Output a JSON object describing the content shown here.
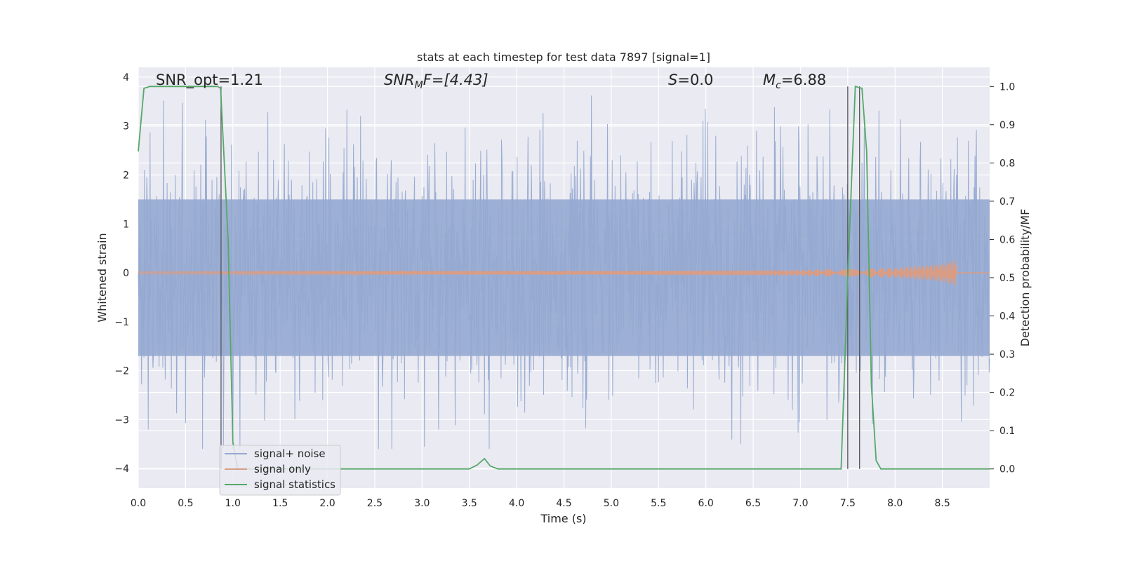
{
  "chart_data": {
    "type": "line",
    "title": "stats at each timestep for test data 7897 [signal=1]",
    "xlabel": "Time (s)",
    "ylabel_left": "Whitened strain",
    "ylabel_right": "Detection probability/MF",
    "xlim": [
      0.0,
      9.0
    ],
    "ylim_left": [
      -4.4,
      4.2
    ],
    "ylim_right": [
      -0.05,
      1.05
    ],
    "x_ticks": [
      "0.0",
      "0.5",
      "1.0",
      "1.5",
      "2.0",
      "2.5",
      "3.0",
      "3.5",
      "4.0",
      "4.5",
      "5.0",
      "5.5",
      "6.0",
      "6.5",
      "7.0",
      "7.5",
      "8.0",
      "8.5"
    ],
    "y_ticks_left": [
      "4",
      "3",
      "2",
      "1",
      "0",
      "−1",
      "−2",
      "−3",
      "−4"
    ],
    "y_ticks_right": [
      "1.0",
      "0.9",
      "0.8",
      "0.7",
      "0.6",
      "0.5",
      "0.4",
      "0.3",
      "0.2",
      "0.1",
      "0.0"
    ],
    "grid": true,
    "legend_position": "lower-left",
    "annotations": {
      "snr_opt": "SNR_opt=1.21",
      "snr_mf_main": "SNR",
      "snr_mf_sub": "M",
      "snr_mf_rest": "F=[4.43]",
      "s_label": "S",
      "s_value": "=0.0",
      "mc_label": "M",
      "mc_sub": "c",
      "mc_value": "=6.88"
    },
    "vertical_markers_x": [
      0.875,
      7.5,
      7.625
    ],
    "series": [
      {
        "name": "signal+ noise",
        "axis": "left",
        "color": "#95a9d0",
        "description_shape": "dense random noise spanning roughly -3.6 to 3.7, core band -1.7 to 1.5"
      },
      {
        "name": "signal only",
        "axis": "left",
        "color": "#d99d85",
        "amplitude_envelope": {
          "x": [
            0.0,
            5.0,
            7.0,
            8.0,
            8.5,
            8.65
          ],
          "y": [
            0.03,
            0.04,
            0.06,
            0.1,
            0.18,
            0.28
          ]
        }
      },
      {
        "name": "signal statistics",
        "axis": "right",
        "color": "#55a868",
        "x": [
          0.0,
          0.06,
          0.12,
          0.84,
          0.87,
          0.95,
          1.0,
          1.05,
          1.15,
          3.5,
          3.58,
          3.66,
          3.72,
          3.8,
          7.43,
          7.5,
          7.58,
          7.65,
          7.7,
          7.75,
          7.8,
          7.85,
          9.0
        ],
        "y": [
          0.83,
          0.995,
          1.0,
          1.0,
          0.995,
          0.6,
          0.07,
          0.0,
          0.0,
          0.0,
          0.01,
          0.027,
          0.008,
          0.0,
          0.0,
          0.5,
          1.0,
          0.995,
          0.83,
          0.22,
          0.022,
          0.0,
          0.0
        ]
      }
    ]
  }
}
